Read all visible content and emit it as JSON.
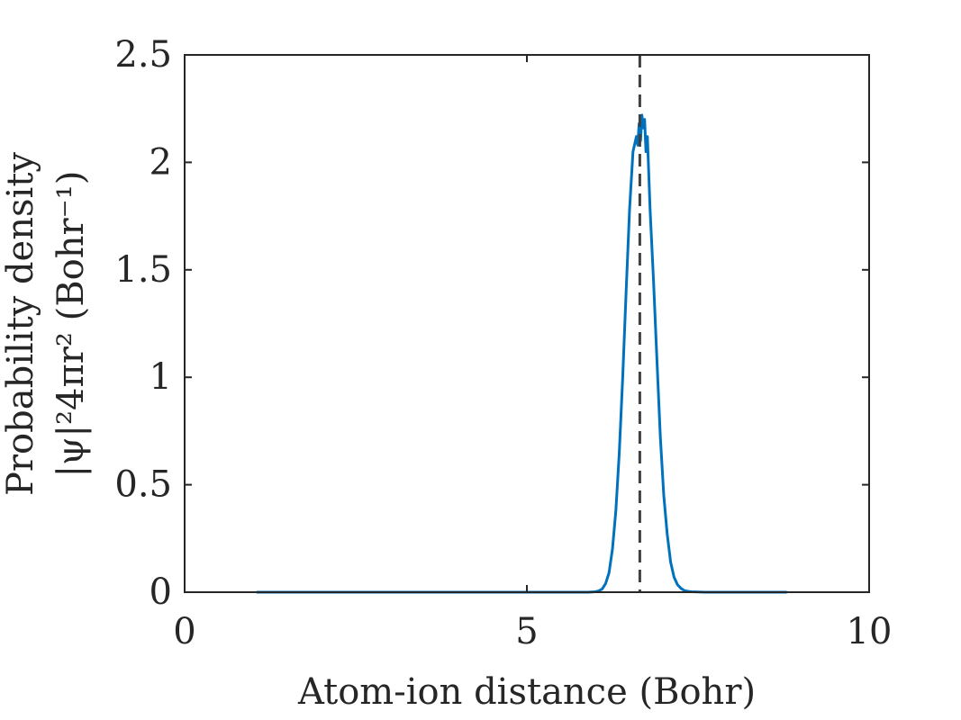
{
  "chart_data": {
    "type": "line",
    "title": "",
    "xlabel": "Atom-ion distance (Bohr)",
    "ylabel_line1": "Probability density",
    "ylabel_line2": "|ψ|²4πr² (Bohr⁻¹)",
    "xlim": [
      0,
      10
    ],
    "ylim": [
      0,
      2.5
    ],
    "xticks": [
      0,
      5,
      10
    ],
    "xtick_labels": [
      "0",
      "5",
      "10"
    ],
    "yticks": [
      0,
      0.5,
      1,
      1.5,
      2,
      2.5
    ],
    "ytick_labels": [
      "0",
      "0.5",
      "1",
      "1.5",
      "2",
      "2.5"
    ],
    "grid": false,
    "box": true,
    "series": [
      {
        "color": "#0072BD",
        "x": [
          1.05,
          5.9,
          6.0,
          6.05,
          6.1,
          6.15,
          6.2,
          6.25,
          6.3,
          6.35,
          6.4,
          6.45,
          6.5,
          6.55,
          6.6,
          6.62,
          6.64,
          6.66,
          6.68,
          6.7,
          6.72,
          6.74,
          6.76,
          6.78,
          6.8,
          6.85,
          6.9,
          6.95,
          7.0,
          7.05,
          7.1,
          7.15,
          7.2,
          7.25,
          7.3,
          7.35,
          7.4,
          7.5,
          7.6,
          8.8
        ],
        "y": [
          0,
          0,
          0.002,
          0.006,
          0.015,
          0.04,
          0.09,
          0.2,
          0.38,
          0.65,
          1.0,
          1.4,
          1.78,
          2.05,
          2.12,
          2.08,
          2.18,
          2.1,
          2.22,
          2.16,
          2.2,
          2.05,
          2.12,
          1.95,
          1.78,
          1.45,
          1.08,
          0.72,
          0.45,
          0.27,
          0.14,
          0.07,
          0.035,
          0.018,
          0.008,
          0.004,
          0.002,
          0.001,
          0,
          0
        ]
      }
    ],
    "reference_line": {
      "x": 6.65,
      "style": "dashed",
      "color": "#404040"
    }
  }
}
